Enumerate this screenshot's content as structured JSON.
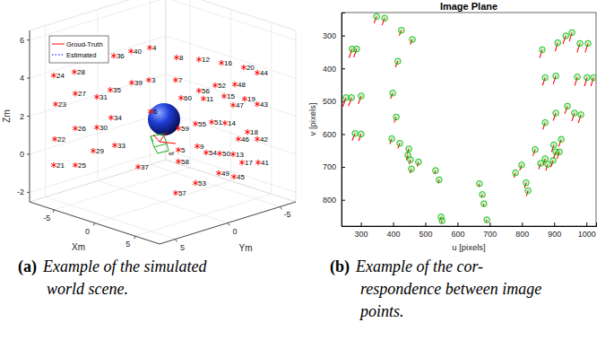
{
  "chart_data": [
    {
      "type": "scatter3d",
      "x_label": "Xm",
      "y_label": "Ym",
      "z_label": "Zm",
      "xlim": [
        -8,
        8
      ],
      "ylim": [
        -6.5,
        6.5
      ],
      "zlim": [
        -2.5,
        6.5
      ],
      "xticks": [
        -5,
        0,
        5
      ],
      "yticks": [
        -5,
        0,
        5
      ],
      "zticks": [
        -2,
        0,
        2,
        4,
        6
      ],
      "grid": true,
      "legend": "northwest",
      "series": [
        {
          "name": "Groud-Truth",
          "color": "#ff0000",
          "line_style": "solid"
        },
        {
          "name": "Estimated",
          "color": "#0000ff",
          "line_style": "dotted"
        }
      ],
      "points": {
        "color": "#ff0000",
        "marker": "asterisk",
        "labels": [
          4,
          40,
          36,
          8,
          12,
          16,
          20,
          44,
          24,
          28,
          39,
          3,
          7,
          52,
          48,
          35,
          56,
          11,
          15,
          19,
          43,
          27,
          31,
          60,
          47,
          23,
          6,
          34,
          55,
          51,
          14,
          26,
          30,
          59,
          18,
          46,
          42,
          22,
          33,
          29,
          9,
          5,
          54,
          50,
          13,
          37,
          58,
          17,
          41,
          21,
          25,
          49,
          45,
          53,
          57
        ],
        "x": [
          -0.78,
          -1.91,
          -2.94,
          0.83,
          2.18,
          3.53,
          4.87,
          5.68,
          -6.55,
          -5.31,
          -1.86,
          -0.84,
          0.78,
          3.15,
          4.34,
          -3.15,
          2.18,
          2.45,
          3.69,
          4.93,
          5.68,
          -5.25,
          -3.96,
          1.1,
          4.23,
          -6.44,
          -0.73,
          -3.1,
          1.97,
          2.94,
          3.74,
          -5.25,
          -3.96,
          0.94,
          5.09,
          4.55,
          5.68,
          -6.49,
          -2.88,
          -4.18,
          2.07,
          0.94,
          2.61,
          3.42,
          4.23,
          -1.48,
          0.94,
          4.77,
          5.74,
          -6.55,
          -5.25,
          3.37,
          4.28,
          1.97,
          0.78
        ],
        "y": [
          0.63,
          1.55,
          2.39,
          -0.68,
          -1.77,
          -2.87,
          -3.96,
          -4.62,
          5.32,
          4.31,
          1.51,
          0.68,
          -0.63,
          -2.56,
          -3.52,
          2.56,
          -1.77,
          -1.99,
          -3.0,
          -4.0,
          -4.62,
          4.27,
          3.22,
          -0.9,
          -3.44,
          5.23,
          0.59,
          2.52,
          -1.6,
          -2.39,
          -3.04,
          4.27,
          3.22,
          -0.77,
          -4.14,
          -3.7,
          -4.62,
          5.27,
          2.34,
          3.39,
          -1.69,
          -0.77,
          -2.12,
          -2.78,
          -3.44,
          1.2,
          -0.77,
          -3.87,
          -4.66,
          5.32,
          4.27,
          -2.74,
          -3.48,
          -1.6,
          -0.63
        ],
        "z": [
          5.6,
          5.41,
          5.17,
          5.08,
          4.98,
          4.8,
          4.56,
          4.28,
          4.14,
          4.32,
          3.76,
          3.9,
          3.9,
          3.62,
          3.67,
          3.38,
          3.34,
          2.92,
          3.05,
          2.91,
          2.63,
          3.19,
          3.01,
          2.96,
          2.58,
          2.63,
          2.25,
          1.92,
          1.6,
          1.69,
          1.64,
          1.36,
          1.41,
          1.36,
          1.17,
          0.8,
          0.8,
          0.8,
          0.47,
          0.18,
          0.42,
          0.23,
          0.09,
          0.04,
          0.0,
          -0.66,
          -0.38,
          -0.43,
          -0.43,
          -0.57,
          -0.57,
          -0.99,
          -1.18,
          -1.51,
          -2.03
        ]
      },
      "annotations": [
        "wf"
      ],
      "caption": {
        "label": "(a)",
        "lines": [
          "Example of the simulated",
          "world scene."
        ]
      }
    },
    {
      "type": "scatter",
      "title": "Image Plane",
      "x_label": "u [pixels]",
      "y_label": "v [pixels]",
      "xlim": [
        240,
        1030
      ],
      "ylim": [
        230,
        880
      ],
      "xticks": [
        300,
        400,
        500,
        600,
        700,
        800,
        900,
        1000
      ],
      "yticks": [
        300,
        400,
        500,
        600,
        700,
        800
      ],
      "grid": false,
      "series": [
        {
          "type": "scatter",
          "color": "#00bb00",
          "marker": "circle",
          "x": [
            349,
            374,
            426,
            460,
            273,
            287,
            415,
            254,
            271,
            301,
            399,
            410,
            282,
            301,
            396,
            421,
            449,
            446,
            454,
            479,
            457,
            532,
            543,
            549,
            552,
            668,
            677,
            682,
            691,
            780,
            799,
            813,
            819,
            841,
            858,
            872,
            880,
            897,
            905,
            916,
            899,
            922,
            872,
            905,
            941,
            963,
            983,
            872,
            905,
            972,
            1002,
            1022,
            863,
            911,
            936,
            955,
            980,
            1005
          ],
          "values": [
            242,
            247,
            284,
            312,
            341,
            341,
            378,
            489,
            489,
            484,
            475,
            548,
            598,
            600,
            614,
            628,
            645,
            664,
            678,
            685,
            706,
            711,
            739,
            852,
            864,
            751,
            784,
            812,
            861,
            718,
            694,
            748,
            772,
            647,
            689,
            675,
            692,
            680,
            654,
            654,
            633,
            616,
            565,
            536,
            515,
            536,
            541,
            428,
            423,
            426,
            428,
            428,
            343,
            322,
            301,
            291,
            324,
            324
          ]
        },
        {
          "type": "line",
          "color": "#ff0000",
          "line_style": "solid",
          "x": [
            341,
            366,
            419,
            453,
            263,
            278,
            407,
            244,
            262,
            292,
            392,
            403,
            273,
            293,
            390,
            415,
            444,
            441,
            450,
            475,
            453,
            529,
            540,
            547,
            550,
            666,
            675,
            680,
            689,
            775,
            793,
            808,
            814,
            834,
            852,
            866,
            874,
            890,
            898,
            909,
            892,
            914,
            865,
            897,
            933,
            955,
            975,
            864,
            897,
            964,
            994,
            1014,
            855,
            903,
            927,
            947,
            971,
            996
          ],
          "values": [
            262,
            268,
            300,
            327,
            368,
            366,
            396,
            516,
            514,
            508,
            492,
            565,
            620,
            621,
            630,
            644,
            660,
            679,
            692,
            699,
            719,
            722,
            750,
            860,
            871,
            760,
            792,
            820,
            868,
            732,
            711,
            764,
            788,
            666,
            707,
            694,
            711,
            700,
            674,
            675,
            654,
            638,
            586,
            559,
            538,
            560,
            566,
            452,
            448,
            452,
            454,
            454,
            368,
            348,
            326,
            317,
            351,
            351
          ]
        }
      ],
      "caption": {
        "label": "(b)",
        "lines": [
          "Example of the cor-",
          "respondence between image",
          "points."
        ]
      }
    }
  ]
}
